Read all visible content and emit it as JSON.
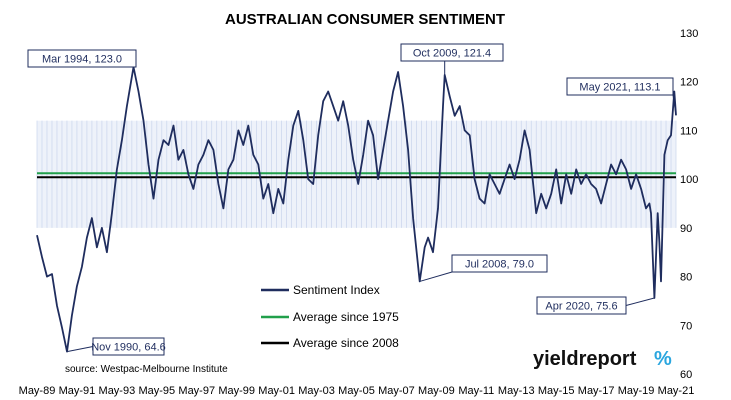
{
  "chart_data": {
    "type": "line",
    "title": "AUSTRALIAN CONSUMER SENTIMENT",
    "source": "source: Westpac-Melbourne Institute",
    "ylim": [
      60,
      130
    ],
    "yticks": [
      60,
      70,
      80,
      90,
      100,
      110,
      120,
      130
    ],
    "xticks": [
      "May-89",
      "May-91",
      "May-93",
      "May-95",
      "May-97",
      "May-99",
      "May-01",
      "May-03",
      "May-05",
      "May-07",
      "May-09",
      "May-11",
      "May-13",
      "May-15",
      "May-17",
      "May-19",
      "May-21"
    ],
    "xlim": [
      "1989-05",
      "2021-05"
    ],
    "band": [
      90,
      112
    ],
    "series": [
      {
        "name": "Sentiment Index",
        "color": "#1f2d5e",
        "points": [
          [
            "1989-05",
            88.5
          ],
          [
            "1989-08",
            84.0
          ],
          [
            "1989-11",
            80.0
          ],
          [
            "1990-02",
            80.5
          ],
          [
            "1990-05",
            74.0
          ],
          [
            "1990-08",
            69.5
          ],
          [
            "1990-11",
            64.6
          ],
          [
            "1991-02",
            72.0
          ],
          [
            "1991-05",
            78.0
          ],
          [
            "1991-08",
            82.0
          ],
          [
            "1991-11",
            88.0
          ],
          [
            "1992-02",
            92.0
          ],
          [
            "1992-05",
            86.0
          ],
          [
            "1992-08",
            90.0
          ],
          [
            "1992-11",
            85.0
          ],
          [
            "1993-02",
            93.0
          ],
          [
            "1993-05",
            102.0
          ],
          [
            "1993-08",
            108.0
          ],
          [
            "1993-11",
            115.0
          ],
          [
            "1994-03",
            123.0
          ],
          [
            "1994-06",
            118.0
          ],
          [
            "1994-09",
            112.0
          ],
          [
            "1994-12",
            103.0
          ],
          [
            "1995-03",
            96.0
          ],
          [
            "1995-06",
            104.0
          ],
          [
            "1995-09",
            108.0
          ],
          [
            "1995-12",
            107.0
          ],
          [
            "1996-03",
            111.0
          ],
          [
            "1996-06",
            104.0
          ],
          [
            "1996-09",
            106.0
          ],
          [
            "1996-12",
            101.0
          ],
          [
            "1997-03",
            98.0
          ],
          [
            "1997-06",
            103.0
          ],
          [
            "1997-09",
            105.0
          ],
          [
            "1997-12",
            108.0
          ],
          [
            "1998-03",
            106.0
          ],
          [
            "1998-06",
            99.0
          ],
          [
            "1998-09",
            94.0
          ],
          [
            "1998-12",
            102.0
          ],
          [
            "1999-03",
            104.0
          ],
          [
            "1999-06",
            110.0
          ],
          [
            "1999-09",
            107.0
          ],
          [
            "1999-12",
            111.0
          ],
          [
            "2000-03",
            105.0
          ],
          [
            "2000-06",
            103.0
          ],
          [
            "2000-09",
            96.0
          ],
          [
            "2000-12",
            99.0
          ],
          [
            "2001-03",
            93.0
          ],
          [
            "2001-06",
            98.0
          ],
          [
            "2001-09",
            95.0
          ],
          [
            "2001-12",
            104.0
          ],
          [
            "2002-03",
            111.0
          ],
          [
            "2002-06",
            114.0
          ],
          [
            "2002-09",
            108.0
          ],
          [
            "2002-12",
            100.0
          ],
          [
            "2003-03",
            99.0
          ],
          [
            "2003-06",
            109.0
          ],
          [
            "2003-09",
            116.0
          ],
          [
            "2003-12",
            118.0
          ],
          [
            "2004-03",
            115.0
          ],
          [
            "2004-06",
            112.0
          ],
          [
            "2004-09",
            116.0
          ],
          [
            "2004-12",
            111.0
          ],
          [
            "2005-03",
            104.0
          ],
          [
            "2005-06",
            99.0
          ],
          [
            "2005-09",
            105.0
          ],
          [
            "2005-12",
            112.0
          ],
          [
            "2006-03",
            109.0
          ],
          [
            "2006-06",
            100.0
          ],
          [
            "2006-09",
            106.0
          ],
          [
            "2006-12",
            112.0
          ],
          [
            "2007-03",
            118.0
          ],
          [
            "2007-06",
            122.0
          ],
          [
            "2007-09",
            115.0
          ],
          [
            "2007-12",
            106.0
          ],
          [
            "2008-03",
            92.0
          ],
          [
            "2008-07",
            79.0
          ],
          [
            "2008-10",
            86.0
          ],
          [
            "2008-12",
            88.0
          ],
          [
            "2009-03",
            85.0
          ],
          [
            "2009-06",
            94.0
          ],
          [
            "2009-09",
            115.0
          ],
          [
            "2009-10",
            121.4
          ],
          [
            "2010-01",
            117.0
          ],
          [
            "2010-04",
            113.0
          ],
          [
            "2010-07",
            115.0
          ],
          [
            "2010-10",
            110.0
          ],
          [
            "2011-01",
            109.0
          ],
          [
            "2011-04",
            100.0
          ],
          [
            "2011-07",
            96.0
          ],
          [
            "2011-10",
            95.0
          ],
          [
            "2012-01",
            101.0
          ],
          [
            "2012-04",
            99.0
          ],
          [
            "2012-07",
            97.0
          ],
          [
            "2012-10",
            100.0
          ],
          [
            "2013-01",
            103.0
          ],
          [
            "2013-04",
            100.0
          ],
          [
            "2013-07",
            104.0
          ],
          [
            "2013-10",
            110.0
          ],
          [
            "2014-01",
            106.0
          ],
          [
            "2014-05",
            93.0
          ],
          [
            "2014-08",
            97.0
          ],
          [
            "2014-11",
            94.0
          ],
          [
            "2015-02",
            97.0
          ],
          [
            "2015-05",
            102.0
          ],
          [
            "2015-08",
            95.0
          ],
          [
            "2015-11",
            101.0
          ],
          [
            "2016-02",
            97.0
          ],
          [
            "2016-05",
            102.0
          ],
          [
            "2016-08",
            99.0
          ],
          [
            "2016-11",
            101.0
          ],
          [
            "2017-02",
            99.0
          ],
          [
            "2017-05",
            98.0
          ],
          [
            "2017-08",
            95.0
          ],
          [
            "2017-11",
            99.0
          ],
          [
            "2018-02",
            103.0
          ],
          [
            "2018-05",
            101.0
          ],
          [
            "2018-08",
            104.0
          ],
          [
            "2018-11",
            102.0
          ],
          [
            "2019-02",
            98.0
          ],
          [
            "2019-05",
            101.0
          ],
          [
            "2019-08",
            98.0
          ],
          [
            "2019-11",
            94.0
          ],
          [
            "2020-01",
            95.0
          ],
          [
            "2020-02",
            93.0
          ],
          [
            "2020-04",
            75.6
          ],
          [
            "2020-06",
            93.0
          ],
          [
            "2020-07",
            87.0
          ],
          [
            "2020-08",
            79.0
          ],
          [
            "2020-10",
            105.0
          ],
          [
            "2020-12",
            108.0
          ],
          [
            "2021-02",
            109.0
          ],
          [
            "2021-04",
            118.0
          ],
          [
            "2021-05",
            113.1
          ]
        ]
      },
      {
        "name": "Average since 1975",
        "color": "#21a04b",
        "value": 101.2
      },
      {
        "name": "Average since 2008",
        "color": "#000000",
        "value": 100.4
      }
    ],
    "annotations": [
      {
        "label": "Mar 1994, 123.0",
        "date": "1994-03",
        "value": 123.0
      },
      {
        "label": "Oct 2009, 121.4",
        "date": "2009-10",
        "value": 121.4
      },
      {
        "label": "May 2021, 113.1",
        "date": "2021-05",
        "value": 113.1
      },
      {
        "label": "Jul 2008, 79.0",
        "date": "2008-07",
        "value": 79.0
      },
      {
        "label": "Apr 2020, 75.6",
        "date": "2020-04",
        "value": 75.6
      },
      {
        "label": "Nov 1990, 64.6",
        "date": "1990-11",
        "value": 64.6
      }
    ]
  },
  "logo": {
    "word": "yieldreport",
    "symbol": "%"
  }
}
